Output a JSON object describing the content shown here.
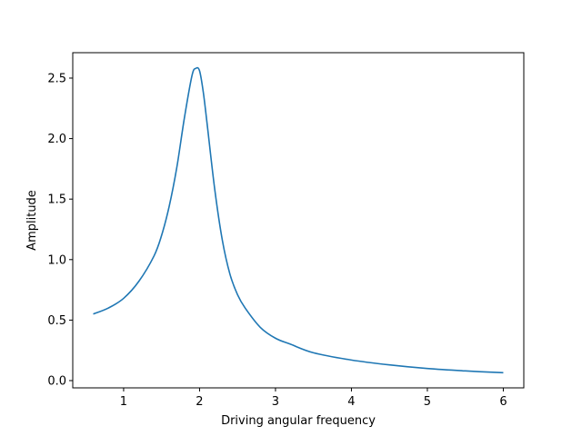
{
  "chart_data": {
    "type": "line",
    "title": "",
    "xlabel": "Driving angular frequency",
    "ylabel": "Amplitude",
    "xlim": [
      0.33,
      6.27
    ],
    "ylim": [
      -0.06,
      2.71
    ],
    "xticks": [
      1,
      2,
      3,
      4,
      5,
      6
    ],
    "xtick_labels": [
      "1",
      "2",
      "3",
      "4",
      "5",
      "6"
    ],
    "yticks": [
      0.0,
      0.5,
      1.0,
      1.5,
      2.0,
      2.5
    ],
    "ytick_labels": [
      "0.0",
      "0.5",
      "1.0",
      "1.5",
      "2.0",
      "2.5"
    ],
    "grid": false,
    "legend": "none",
    "series": [
      {
        "color": "#1f77b4",
        "x": [
          0.6,
          0.8,
          1.0,
          1.2,
          1.4,
          1.5,
          1.6,
          1.7,
          1.8,
          1.9,
          1.95,
          2.0,
          2.05,
          2.1,
          2.2,
          2.3,
          2.4,
          2.5,
          2.6,
          2.8,
          3.0,
          3.2,
          3.5,
          4.0,
          4.5,
          5.0,
          5.5,
          6.0
        ],
        "y": [
          0.55,
          0.6,
          0.68,
          0.82,
          1.03,
          1.2,
          1.44,
          1.76,
          2.17,
          2.52,
          2.58,
          2.56,
          2.38,
          2.12,
          1.58,
          1.16,
          0.88,
          0.71,
          0.6,
          0.44,
          0.35,
          0.3,
          0.23,
          0.17,
          0.13,
          0.1,
          0.08,
          0.065
        ]
      }
    ]
  }
}
